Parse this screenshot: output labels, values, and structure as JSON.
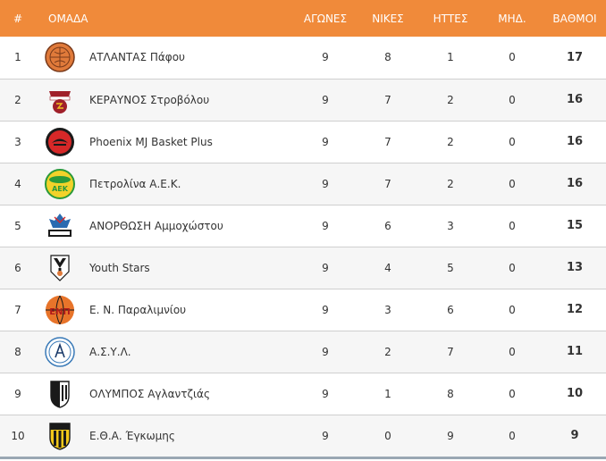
{
  "header": {
    "rank": "#",
    "team": "ΟΜΑΔΑ",
    "games": "ΑΓΩΝΕΣ",
    "wins": "ΝΙΚΕΣ",
    "losses": "ΗΤΤΕΣ",
    "forfeits": "ΜΗΔ.",
    "points": "ΒΑΘΜΟΙ"
  },
  "rows": [
    {
      "rank": "1",
      "team": "ΑΤΛΑΝΤΑΣ Πάφου",
      "games": "9",
      "wins": "8",
      "losses": "1",
      "forfeits": "0",
      "points": "17",
      "logo_icon": "atlantas-logo-icon"
    },
    {
      "rank": "2",
      "team": "ΚΕΡΑΥΝΟΣ Στροβόλου",
      "games": "9",
      "wins": "7",
      "losses": "2",
      "forfeits": "0",
      "points": "16",
      "logo_icon": "keraunos-logo-icon"
    },
    {
      "rank": "3",
      "team": "Phoenix MJ Basket Plus",
      "games": "9",
      "wins": "7",
      "losses": "2",
      "forfeits": "0",
      "points": "16",
      "logo_icon": "phoenix-logo-icon"
    },
    {
      "rank": "4",
      "team": "Πετρολίνα Α.Ε.Κ.",
      "games": "9",
      "wins": "7",
      "losses": "2",
      "forfeits": "0",
      "points": "16",
      "logo_icon": "aek-logo-icon"
    },
    {
      "rank": "5",
      "team": "ΑΝΟΡΘΩΣΗ Αμμοχώστου",
      "games": "9",
      "wins": "6",
      "losses": "3",
      "forfeits": "0",
      "points": "15",
      "logo_icon": "anorthosis-logo-icon"
    },
    {
      "rank": "6",
      "team": "Youth Stars",
      "games": "9",
      "wins": "4",
      "losses": "5",
      "forfeits": "0",
      "points": "13",
      "logo_icon": "youth-stars-logo-icon"
    },
    {
      "rank": "7",
      "team": "Ε. Ν. Παραλιμνίου",
      "games": "9",
      "wins": "3",
      "losses": "6",
      "forfeits": "0",
      "points": "12",
      "logo_icon": "enp-logo-icon"
    },
    {
      "rank": "8",
      "team": "Α.Σ.Υ.Λ.",
      "games": "9",
      "wins": "2",
      "losses": "7",
      "forfeits": "0",
      "points": "11",
      "logo_icon": "asyl-logo-icon"
    },
    {
      "rank": "9",
      "team": "ΟΛΥΜΠΟΣ Αγλαντζιάς",
      "games": "9",
      "wins": "1",
      "losses": "8",
      "forfeits": "0",
      "points": "10",
      "logo_icon": "olympos-logo-icon"
    },
    {
      "rank": "10",
      "team": "Ε.Θ.Α. Έγκωμης",
      "games": "9",
      "wins": "0",
      "losses": "9",
      "forfeits": "0",
      "points": "9",
      "logo_icon": "etha-logo-icon"
    }
  ],
  "colors": {
    "header_bg": "#f08a3a",
    "row_border": "#cfcfcf",
    "alt_row": "#f6f6f6"
  }
}
